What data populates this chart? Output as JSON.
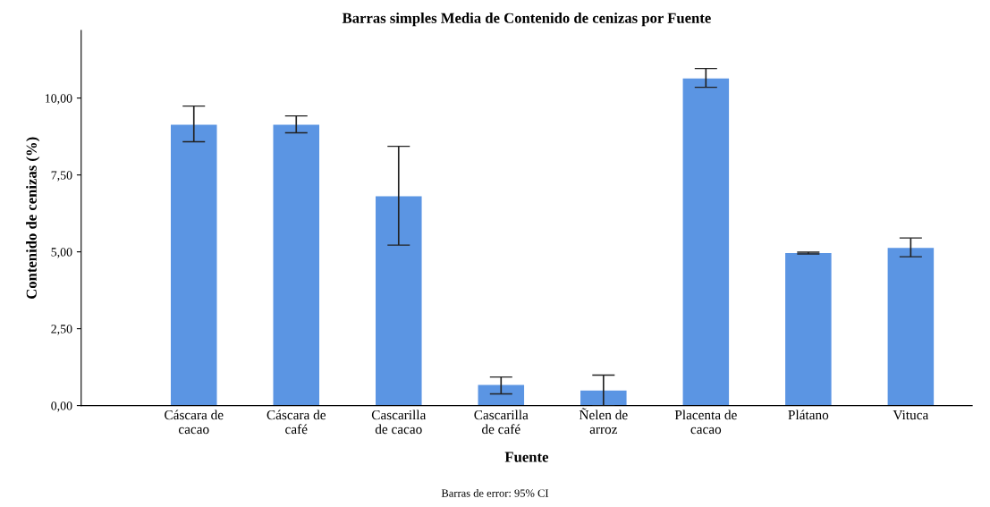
{
  "chart_data": {
    "type": "bar",
    "title": "Barras simples Media de Contenido de cenizas por Fuente",
    "xlabel": "Fuente",
    "ylabel": "Contenido de cenizas (%)",
    "categories": [
      "Cáscara de\ncacao",
      "Cáscara de\ncafé",
      "Cascarilla\nde cacao",
      "Cascarilla\nde café",
      "Ñelen de\narroz",
      "Placenta de\ncacao",
      "Plátano",
      "Vituca"
    ],
    "values": [
      9.13,
      9.13,
      6.81,
      0.67,
      0.49,
      10.64,
      4.96,
      5.13
    ],
    "errors": [
      [
        8.58,
        9.74
      ],
      [
        8.87,
        9.42
      ],
      [
        5.22,
        8.43
      ],
      [
        0.38,
        0.93
      ],
      [
        0.0,
        0.99
      ],
      [
        10.35,
        10.96
      ],
      [
        4.93,
        4.99
      ],
      [
        4.84,
        5.45
      ]
    ],
    "color": "#5b95e3",
    "ylim": [
      0,
      12.2
    ],
    "yticks": [
      {
        "value": 0,
        "label": "0,00"
      },
      {
        "value": 2.5,
        "label": "2,50"
      },
      {
        "value": 5,
        "label": "5,00"
      },
      {
        "value": 7.5,
        "label": "7,50"
      },
      {
        "value": 10,
        "label": "10,00"
      }
    ],
    "grid": false,
    "legend": false,
    "annotations": [
      "Barras de error: 95% CI"
    ]
  }
}
